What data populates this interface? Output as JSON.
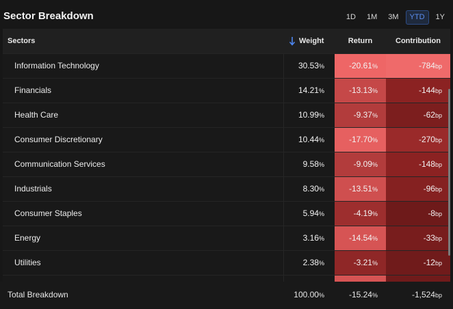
{
  "header": {
    "title": "Sector Breakdown",
    "periods": [
      "1D",
      "1M",
      "3M",
      "YTD",
      "1Y"
    ],
    "active_period": "YTD"
  },
  "table": {
    "columns": {
      "sectors": "Sectors",
      "weight": "Weight",
      "return": "Return",
      "contribution": "Contribution"
    },
    "sort_icon": "arrow-down-icon",
    "rows": [
      {
        "sector": "Information Technology",
        "weight": "30.53",
        "return": "-20.61",
        "contribution": "-784",
        "return_color": "#ee6666",
        "contribution_color": "#ef6a6a"
      },
      {
        "sector": "Financials",
        "weight": "14.21",
        "return": "-13.13",
        "contribution": "-144",
        "return_color": "#c54848",
        "contribution_color": "#8b2222"
      },
      {
        "sector": "Health Care",
        "weight": "10.99",
        "return": "-9.37",
        "contribution": "-62",
        "return_color": "#b23c3c",
        "contribution_color": "#7c1e1e"
      },
      {
        "sector": "Consumer Discretionary",
        "weight": "10.44",
        "return": "-17.70",
        "contribution": "-270",
        "return_color": "#e66060",
        "contribution_color": "#9a2a2a"
      },
      {
        "sector": "Communication Services",
        "weight": "9.58",
        "return": "-9.09",
        "contribution": "-148",
        "return_color": "#b23c3c",
        "contribution_color": "#8b2222"
      },
      {
        "sector": "Industrials",
        "weight": "8.30",
        "return": "-13.51",
        "contribution": "-96",
        "return_color": "#cf4f4f",
        "contribution_color": "#852121"
      },
      {
        "sector": "Consumer Staples",
        "weight": "5.94",
        "return": "-4.19",
        "contribution": "-8",
        "return_color": "#9d2e2e",
        "contribution_color": "#6e1a1a"
      },
      {
        "sector": "Energy",
        "weight": "3.16",
        "return": "-14.54",
        "contribution": "-33",
        "return_color": "#d65454",
        "contribution_color": "#781d1d"
      },
      {
        "sector": "Utilities",
        "weight": "2.38",
        "return": "-3.21",
        "contribution": "-12",
        "return_color": "#8f2727",
        "contribution_color": "#701b1b"
      },
      {
        "sector": "",
        "weight": "",
        "return": "",
        "contribution": "",
        "return_color": "#d65454",
        "contribution_color": "#701b1b"
      }
    ]
  },
  "units": {
    "percent": "%",
    "bp": "bp"
  },
  "footer": {
    "label": "Total Breakdown",
    "weight": "100.00",
    "return": "-15.24",
    "contribution": "-1,524"
  }
}
